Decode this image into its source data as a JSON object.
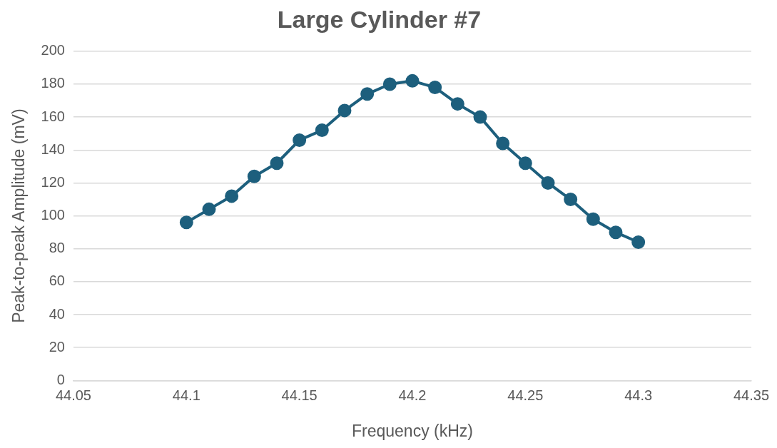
{
  "chart_data": {
    "type": "line",
    "title": "Large Cylinder #7",
    "xlabel": "Frequency (kHz)",
    "ylabel": "Peak-to-peak Amplitude (mV)",
    "x": [
      44.1,
      44.11,
      44.12,
      44.13,
      44.14,
      44.15,
      44.16,
      44.17,
      44.18,
      44.19,
      44.2,
      44.21,
      44.22,
      44.23,
      44.24,
      44.25,
      44.26,
      44.27,
      44.28,
      44.29,
      44.3
    ],
    "series": [
      {
        "color": "#1d5f7d",
        "values": [
          96,
          104,
          112,
          124,
          132,
          146,
          152,
          164,
          174,
          180,
          182,
          178,
          168,
          160,
          144,
          132,
          120,
          110,
          98,
          90,
          84
        ]
      }
    ],
    "xlim": [
      44.05,
      44.35
    ],
    "xticks": [
      44.05,
      44.1,
      44.15,
      44.2,
      44.25,
      44.3,
      44.35
    ],
    "ylim": [
      0,
      200
    ],
    "yticks": [
      0,
      20,
      40,
      60,
      80,
      100,
      120,
      140,
      160,
      180,
      200
    ],
    "grid": "y",
    "marker": "circle",
    "line_style": "solid"
  }
}
